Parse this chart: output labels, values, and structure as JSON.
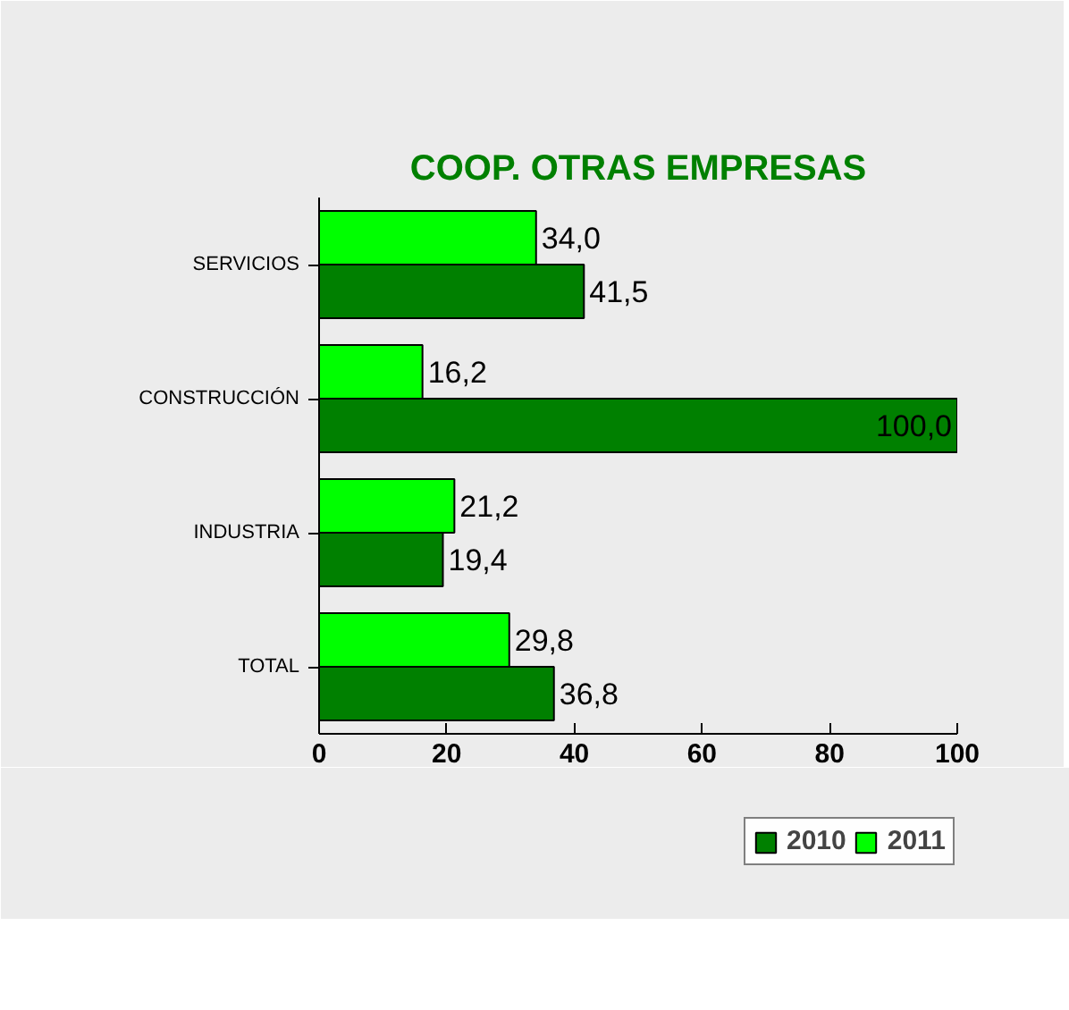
{
  "chart_data": {
    "type": "bar",
    "orientation": "horizontal",
    "title": "COOP. OTRAS EMPRESAS",
    "categories": [
      "SERVICIOS",
      "CONSTRUCCIÓN",
      "INDUSTRIA",
      "TOTAL"
    ],
    "series": [
      {
        "name": "2010",
        "color": "#008000",
        "values": [
          41.5,
          100.0,
          19.4,
          36.8
        ],
        "value_labels": [
          "41,5",
          "100,0",
          "19,4",
          "36,8"
        ]
      },
      {
        "name": "2011",
        "color": "#00ff00",
        "values": [
          34.0,
          16.2,
          21.2,
          29.8
        ],
        "value_labels": [
          "34,0",
          "16,2",
          "21,2",
          "29,8"
        ]
      }
    ],
    "xlim": [
      0,
      100
    ],
    "xticks": [
      0,
      20,
      40,
      60,
      80,
      100
    ],
    "grid": false,
    "legend": "bottom"
  }
}
